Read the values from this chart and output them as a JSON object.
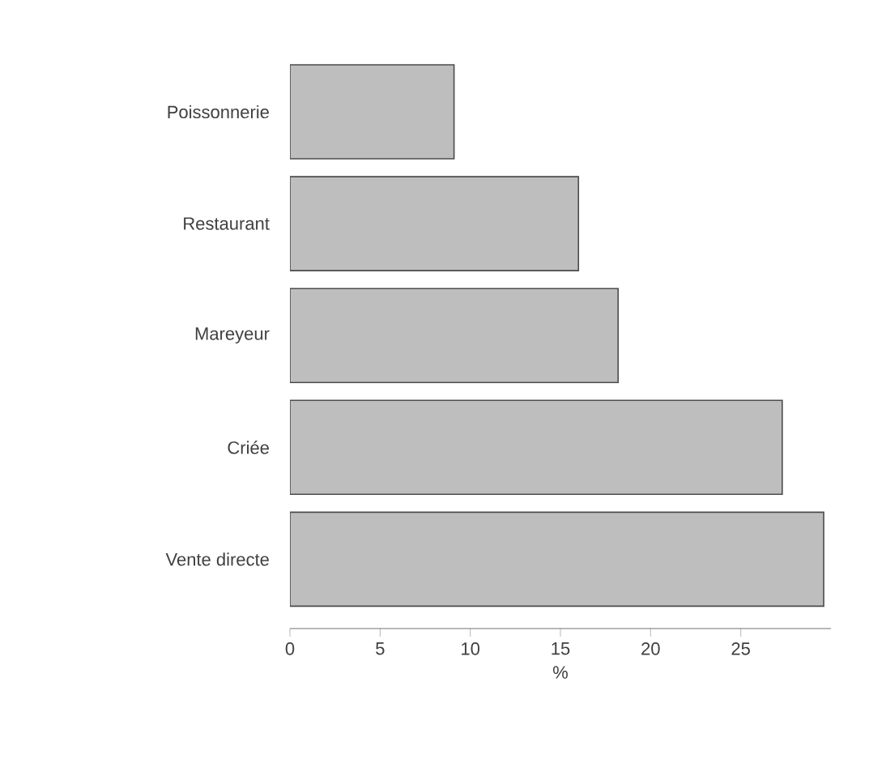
{
  "chart_data": {
    "type": "bar",
    "orientation": "horizontal",
    "xlabel": "%",
    "categories": [
      "Poissonnerie",
      "Restaurant",
      "Mareyeur",
      "Criée",
      "Vente directe"
    ],
    "values": [
      9.1,
      16.0,
      18.2,
      27.3,
      29.6
    ],
    "color": "#bebebe",
    "xlim": [
      0,
      30
    ],
    "xticks": [
      0,
      5,
      10,
      15,
      20,
      25
    ],
    "grid": false
  }
}
